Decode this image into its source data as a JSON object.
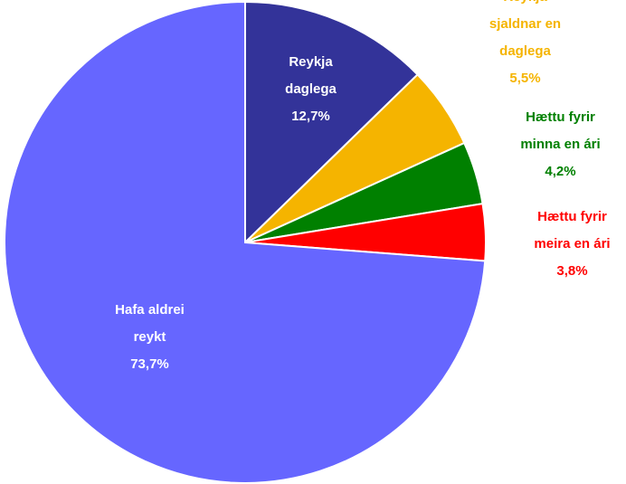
{
  "chart_data": {
    "type": "pie",
    "categories": [
      "Reykja daglega",
      "Reykja sjaldnar en daglega",
      "Hættu fyrir minna en ári",
      "Hættu fyrir meira en ári",
      "Hafa aldrei reykt"
    ],
    "values": [
      12.7,
      5.5,
      4.2,
      3.8,
      73.7
    ],
    "value_labels": [
      "12,7%",
      "5,5%",
      "4,2%",
      "3,8%",
      "73,7%"
    ],
    "colors": [
      "#333399",
      "#f5b400",
      "#008000",
      "#ff0000",
      "#6666ff"
    ]
  }
}
